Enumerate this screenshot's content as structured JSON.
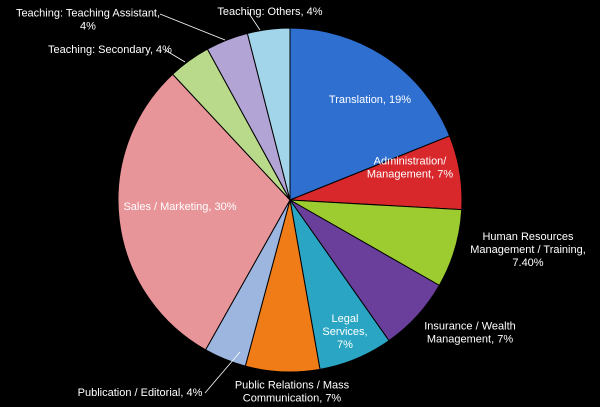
{
  "chart_data": {
    "type": "pie",
    "categories": [
      "Translation, 19%",
      "Administration/\nManagement, 7%",
      "Human Resources\nManagement / Training,\n7.40%",
      "Insurance / Wealth\nManagement, 7%",
      "Legal\nServices,\n7%",
      "Public Relations / Mass\nCommunication, 7%",
      "Publication / Editorial, 4%",
      "Sales / Marketing, 30%",
      "Teaching: Secondary, 4%",
      "Teaching: Teaching Assistant,\n4%",
      "Teaching: Others, 4%"
    ],
    "values": [
      19,
      7,
      7.4,
      7,
      7,
      7,
      4,
      30,
      4,
      4,
      4
    ],
    "colors": [
      "#2f6fd0",
      "#d8282c",
      "#9ccc30",
      "#6a3f9c",
      "#2aa6c4",
      "#f07c18",
      "#9db6e0",
      "#e8959a",
      "#b9da8a",
      "#b3a4d6",
      "#a3d5ea"
    ]
  }
}
